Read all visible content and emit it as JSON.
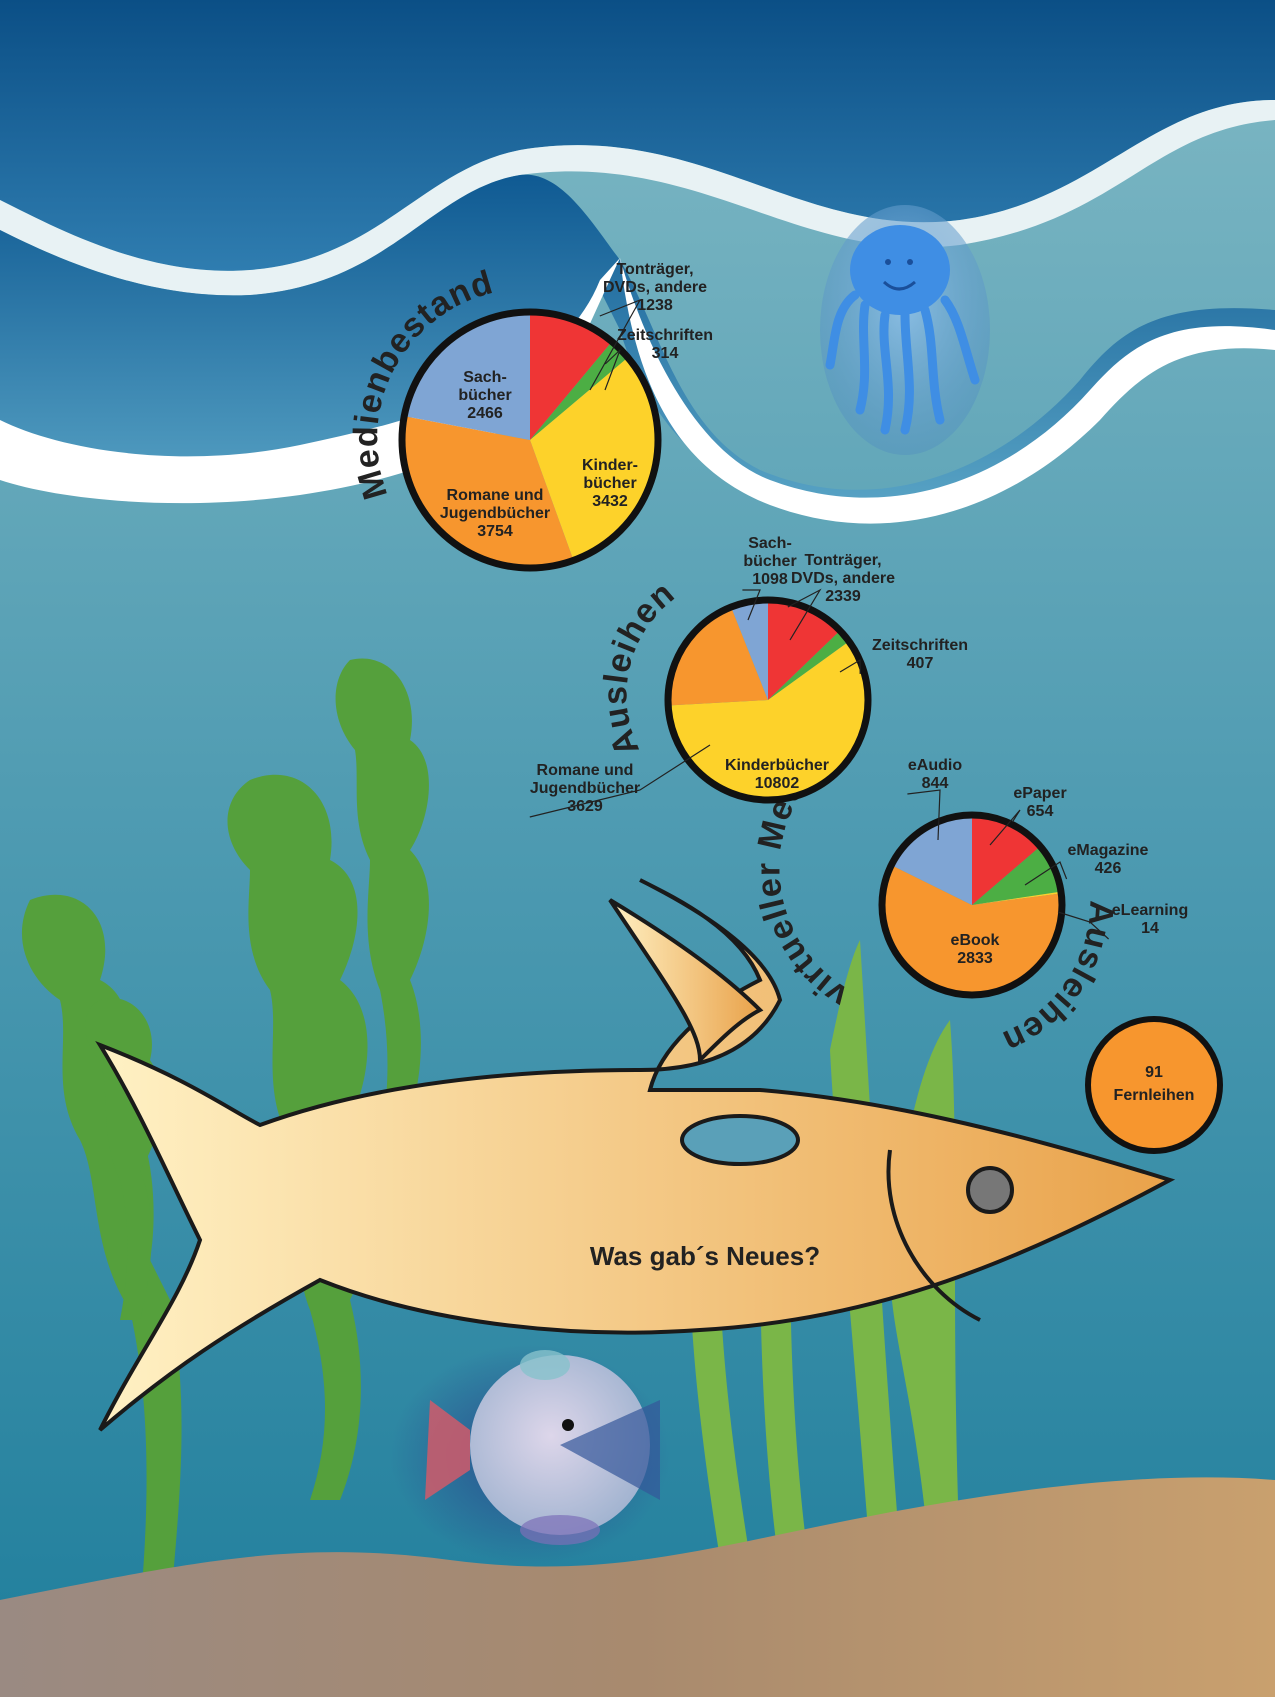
{
  "page_title": "Was gab´s Neues?",
  "colors": {
    "red": "#ef3535",
    "green": "#4cae44",
    "yellow": "#fdd22a",
    "orange": "#f7962e",
    "blue": "#7fa5d4",
    "sea_deep": "#0f5a93",
    "sea_mid": "#4b9bb4",
    "sea_floor": "#c8a070",
    "fish_body": "#f0c27b"
  },
  "fernleihen": {
    "count": "91",
    "label": "Fernleihen"
  },
  "chart_data": [
    {
      "type": "pie",
      "title": "Medienbestand",
      "slices": [
        {
          "name": "Tonträger, DVDs, andere",
          "value": 1238,
          "color": "#ef3535",
          "label_lines": [
            "Tonträger,",
            "DVDs, andere",
            "1238"
          ]
        },
        {
          "name": "Zeitschriften",
          "value": 314,
          "color": "#4cae44",
          "label_lines": [
            "Zeitschriften",
            "314"
          ]
        },
        {
          "name": "Kinderbücher",
          "value": 3432,
          "color": "#fdd22a",
          "label_lines": [
            "Kinder-",
            "bücher",
            "3432"
          ]
        },
        {
          "name": "Romane und Jugendbücher",
          "value": 3754,
          "color": "#f7962e",
          "label_lines": [
            "Romane und",
            "Jugendbücher",
            "3754"
          ]
        },
        {
          "name": "Sachbücher",
          "value": 2466,
          "color": "#7fa5d4",
          "label_lines": [
            "Sach-",
            "bücher",
            "2466"
          ]
        }
      ]
    },
    {
      "type": "pie",
      "title": "Ausleihen",
      "slices": [
        {
          "name": "Tonträger, DVDs, andere",
          "value": 2339,
          "color": "#ef3535",
          "label_lines": [
            "Tonträger,",
            "DVDs, andere",
            "2339"
          ]
        },
        {
          "name": "Zeitschriften",
          "value": 407,
          "color": "#4cae44",
          "label_lines": [
            "Zeitschriften",
            "407"
          ]
        },
        {
          "name": "Kinderbücher",
          "value": 10802,
          "color": "#fdd22a",
          "label_lines": [
            "Kinderbücher",
            "10802"
          ]
        },
        {
          "name": "Romane und Jugendbücher",
          "value": 3629,
          "color": "#f7962e",
          "label_lines": [
            "Romane und",
            "Jugendbücher",
            "3629"
          ]
        },
        {
          "name": "Sachbücher",
          "value": 1098,
          "color": "#7fa5d4",
          "label_lines": [
            "Sach-",
            "bücher",
            "1098"
          ]
        }
      ]
    },
    {
      "type": "pie",
      "title": "Ausleihen virtueller Medien",
      "slices": [
        {
          "name": "ePaper",
          "value": 654,
          "color": "#ef3535",
          "label_lines": [
            "ePaper",
            "654"
          ]
        },
        {
          "name": "eMagazine",
          "value": 426,
          "color": "#4cae44",
          "label_lines": [
            "eMagazine",
            "426"
          ]
        },
        {
          "name": "eLearning",
          "value": 14,
          "color": "#fdd22a",
          "label_lines": [
            "eLearning",
            "14"
          ]
        },
        {
          "name": "eBook",
          "value": 2833,
          "color": "#f7962e",
          "label_lines": [
            "eBook",
            "2833"
          ]
        },
        {
          "name": "eAudio",
          "value": 844,
          "color": "#7fa5d4",
          "label_lines": [
            "eAudio",
            "844"
          ]
        }
      ]
    }
  ]
}
